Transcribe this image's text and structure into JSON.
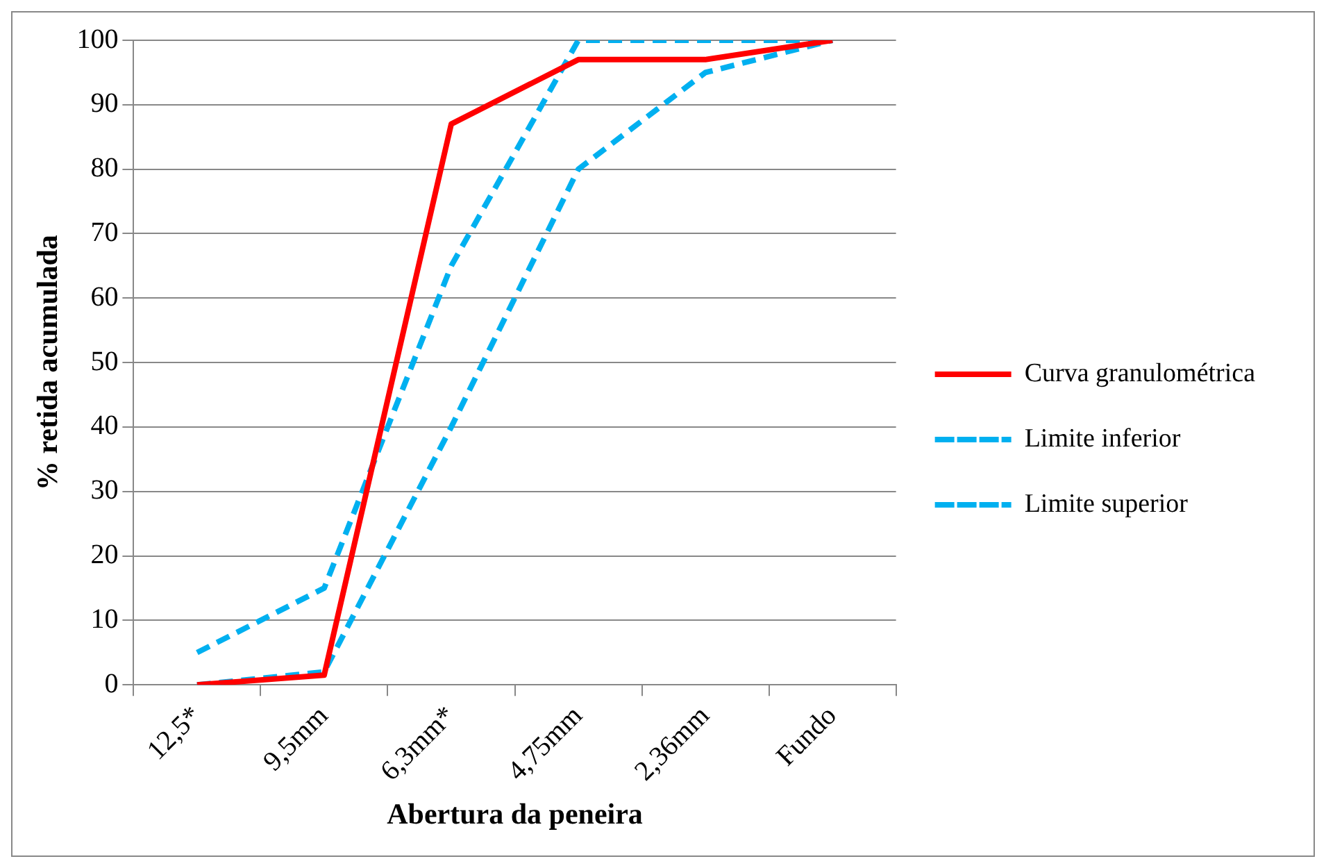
{
  "chart_data": {
    "type": "line",
    "xlabel": "Abertura da peneira",
    "ylabel": "% retida acumulada",
    "categories": [
      "12,5*",
      "9,5mm",
      "6,3mm*",
      "4,75mm",
      "2,36mm",
      "Fundo"
    ],
    "series": [
      {
        "name": "Curva granulométrica",
        "color": "#ff0000",
        "values": [
          0,
          1.5,
          87,
          97,
          97,
          100
        ],
        "line_style": "solid"
      },
      {
        "name": "Limite inferior",
        "color": "#00b0f0",
        "values": [
          0,
          2,
          40,
          80,
          95,
          100
        ],
        "line_style": "dashed"
      },
      {
        "name": "Limite superior",
        "color": "#00b0f0",
        "values": [
          5,
          15,
          65,
          100,
          100,
          100
        ],
        "line_style": "dashed"
      }
    ],
    "ylim": [
      0,
      100
    ],
    "yticks": [
      0,
      10,
      20,
      30,
      40,
      50,
      60,
      70,
      80,
      90,
      100
    ],
    "grid": "y",
    "legend": "right",
    "marker": "none"
  }
}
